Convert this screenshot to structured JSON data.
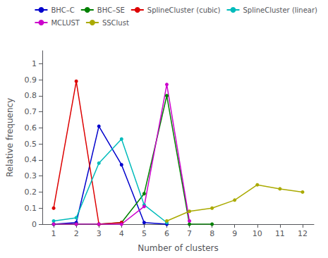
{
  "chart_data": {
    "type": "line",
    "xlabel": "Number of clusters",
    "ylabel": "Relative frequency",
    "xlim": [
      0.5,
      12.5
    ],
    "ylim": [
      0,
      1.08
    ],
    "xticks": [
      1,
      2,
      3,
      4,
      5,
      6,
      7,
      8,
      9,
      10,
      11,
      12
    ],
    "yticks": [
      0,
      0.1,
      0.2,
      0.3,
      0.4,
      0.5,
      0.6,
      0.7,
      0.8,
      0.9,
      1
    ],
    "grid": false,
    "legend": "upper right",
    "marker": "circle",
    "series": [
      {
        "name": "BHC–C",
        "color": "#0000cc",
        "x": [
          1,
          2,
          3,
          4,
          5,
          6
        ],
        "values": [
          0.0,
          0.01,
          0.61,
          0.37,
          0.01,
          0.0
        ]
      },
      {
        "name": "BHC–SE",
        "color": "#008000",
        "x": [
          1,
          2,
          3,
          4,
          5,
          6,
          7,
          8
        ],
        "values": [
          0.0,
          0.0,
          0.0,
          0.01,
          0.19,
          0.8,
          0.0,
          0.0
        ]
      },
      {
        "name": "SplineCluster (cubic)",
        "color": "#dd0000",
        "x": [
          1,
          2,
          3,
          4
        ],
        "values": [
          0.1,
          0.89,
          0.0,
          0.01
        ]
      },
      {
        "name": "SplineCluster (linear)",
        "color": "#00bbbb",
        "x": [
          1,
          2,
          3,
          4,
          5,
          6
        ],
        "values": [
          0.02,
          0.04,
          0.38,
          0.53,
          0.12,
          0.01
        ]
      },
      {
        "name": "MCLUST",
        "color": "#cc00cc",
        "x": [
          1,
          2,
          3,
          4,
          5,
          6,
          7
        ],
        "values": [
          0.0,
          0.0,
          0.0,
          0.0,
          0.11,
          0.87,
          0.02
        ]
      },
      {
        "name": "SSClust",
        "color": "#aaaa00",
        "x": [
          6,
          7,
          8,
          9,
          10,
          11,
          12
        ],
        "values": [
          0.02,
          0.08,
          0.1,
          0.15,
          0.245,
          0.22,
          0.2
        ]
      }
    ]
  }
}
